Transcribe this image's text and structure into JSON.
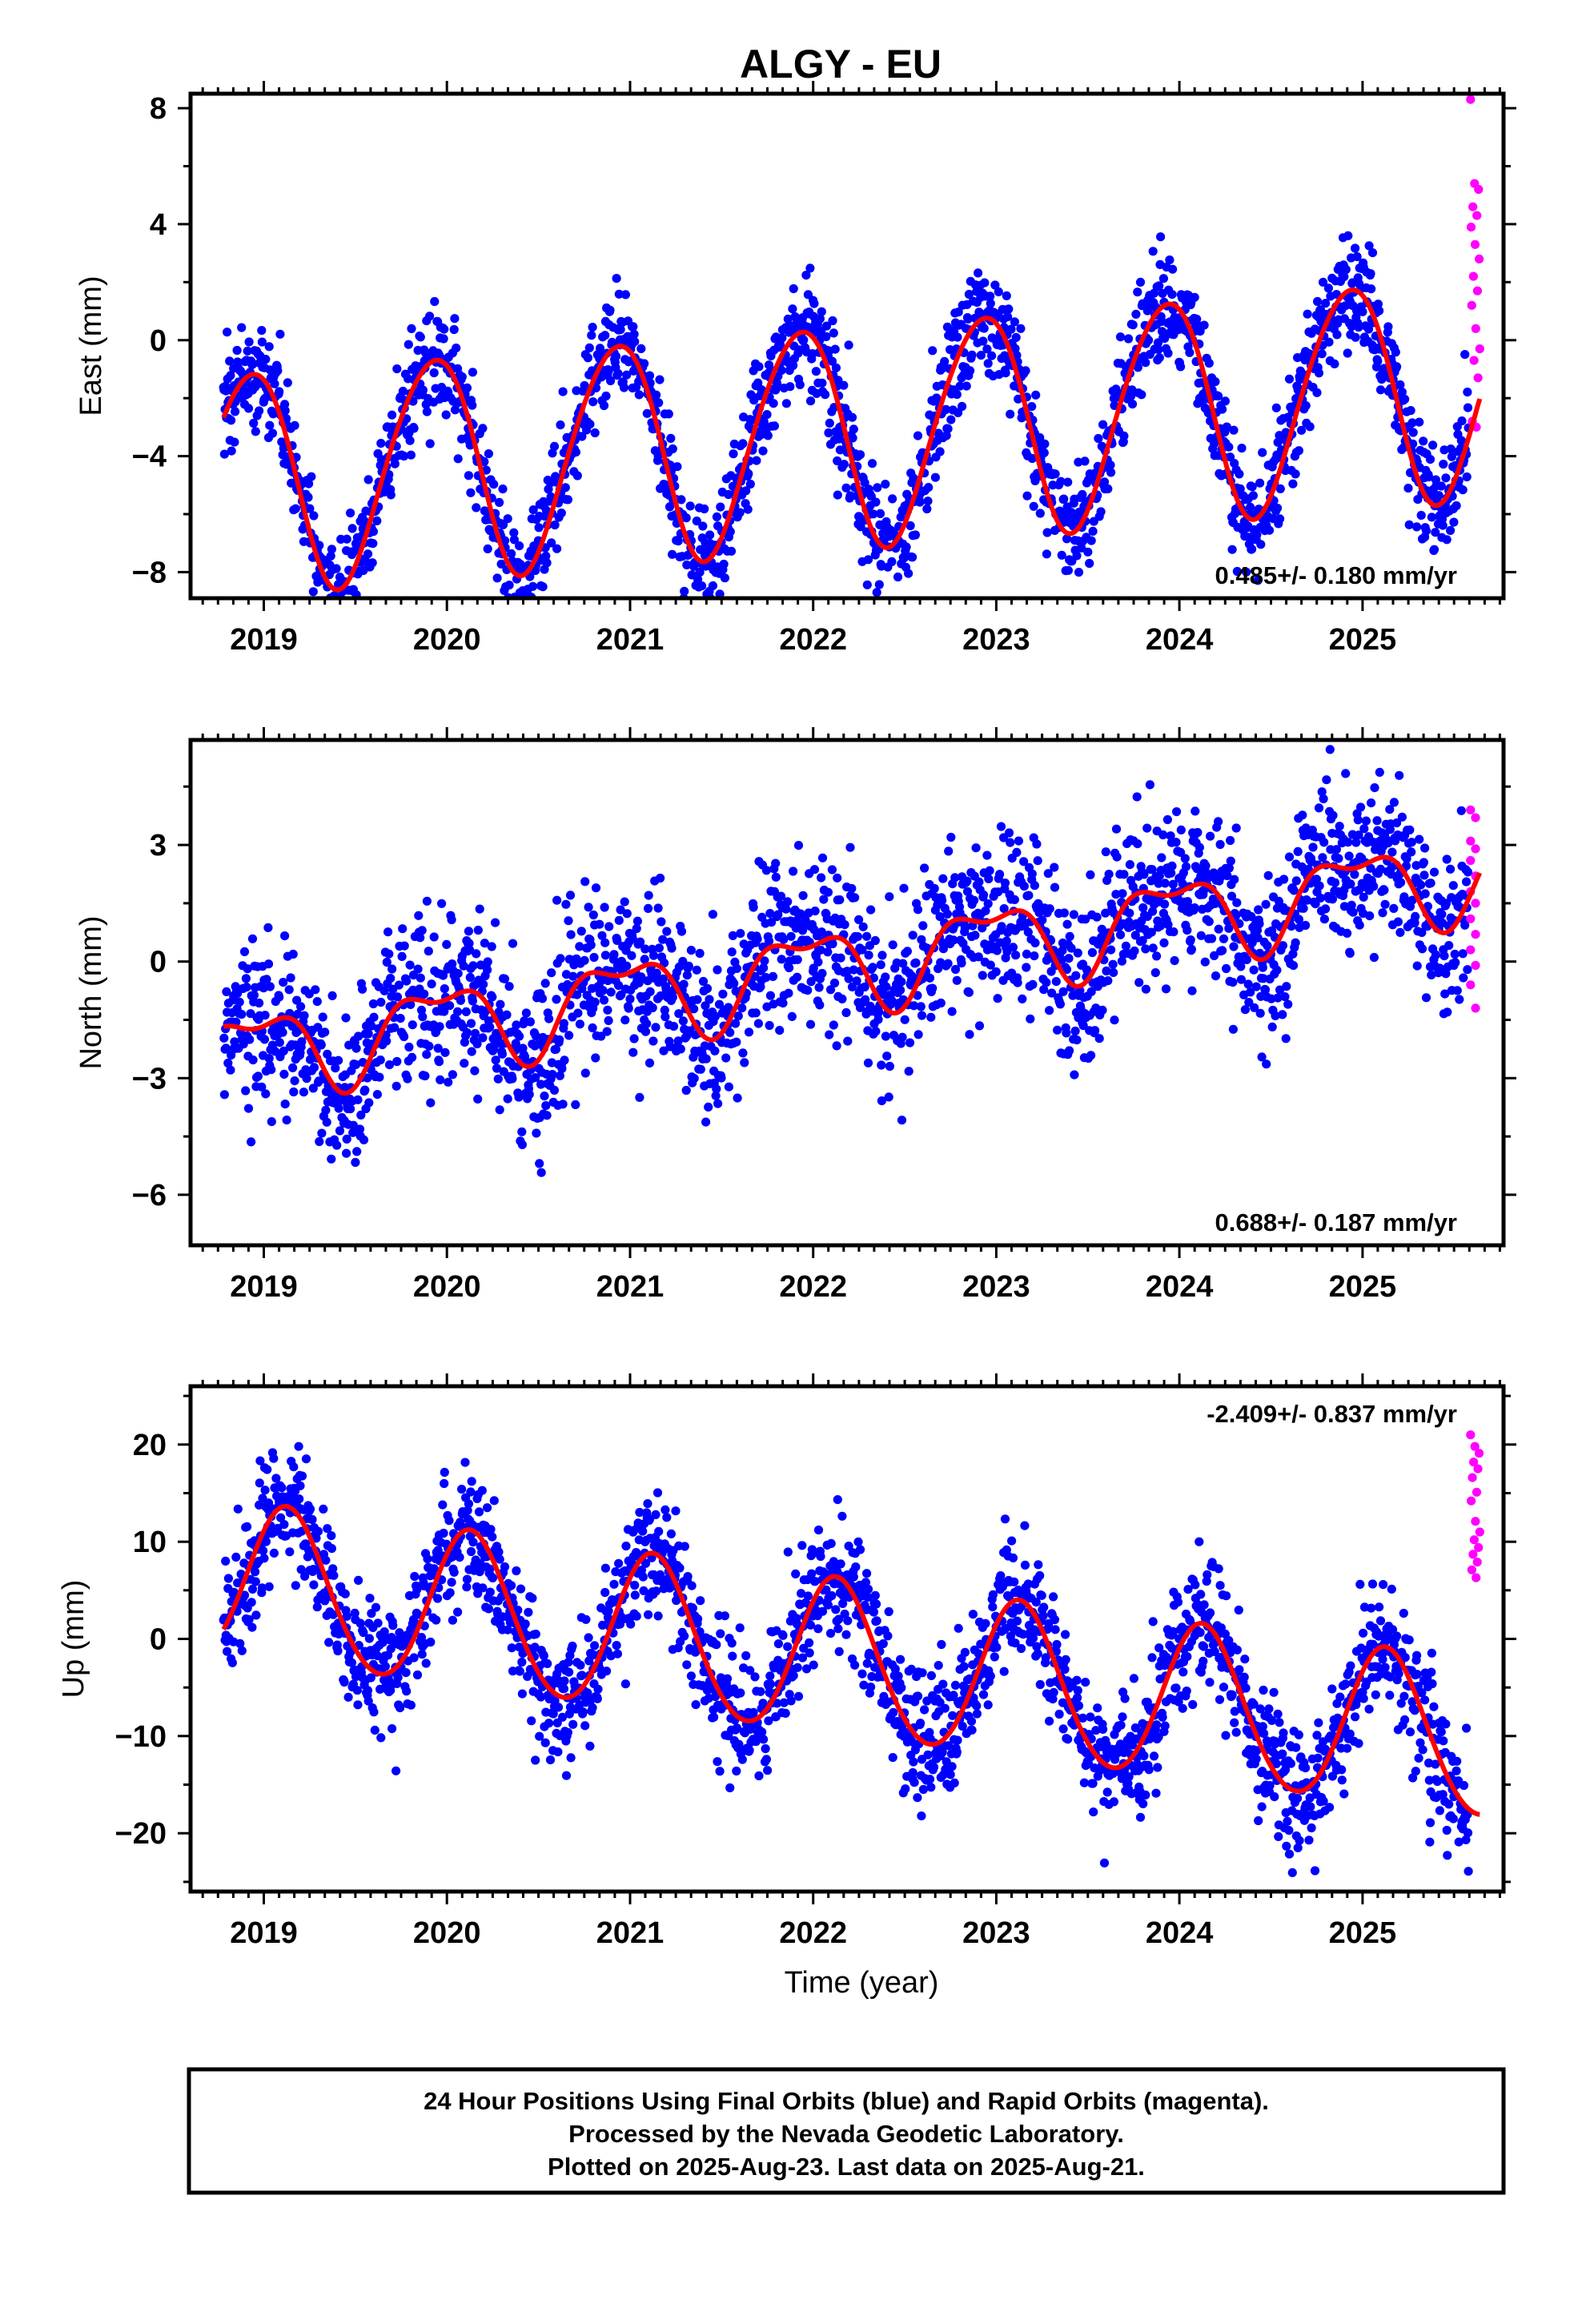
{
  "figure": {
    "title": "ALGY - EU",
    "caption": [
      "24 Hour Positions Using Final Orbits (blue) and Rapid Orbits (magenta).",
      "Processed by the Nevada Geodetic Laboratory.",
      "Plotted on 2025-Aug-23. Last data on 2025-Aug-21."
    ],
    "colors": {
      "final_orbits": "#0000ff",
      "rapid_orbits": "#ff00ff",
      "model_fit": "#ff0000",
      "frame": "#000000"
    }
  },
  "chart_data": [
    {
      "type": "scatter",
      "ylabel": "East (mm)",
      "xlabel": "",
      "rate_label": "0.485+/- 0.180 mm/yr",
      "rate_label_position": "bottom-right",
      "xlim": [
        2018.6,
        2025.77
      ],
      "ylim": [
        -8.9,
        8.5
      ],
      "x_ticks": [
        2019,
        2020,
        2021,
        2022,
        2023,
        2024,
        2025
      ],
      "y_ticks": [
        -8,
        -4,
        0,
        4,
        8
      ],
      "series": [
        {
          "role": "final",
          "style": "points",
          "x_start": 2018.78,
          "x_end": 2025.58,
          "trend": [
            -4.9,
            0.485
          ],
          "annual": [
            3.8,
            0.42
          ],
          "semiannual": [
            0.3,
            0.1
          ],
          "scatter": 0.95
        },
        {
          "role": "rapid",
          "style": "points",
          "x_range": [
            2025.59,
            2025.64
          ],
          "y": [
            8.3,
            5.4,
            5.2,
            4.6,
            4.3,
            3.9,
            3.3,
            2.8,
            2.2,
            1.7,
            1.2,
            0.4,
            -0.3,
            -0.7,
            -1.3,
            -2.8,
            -3.0
          ]
        },
        {
          "role": "fit",
          "style": "line",
          "x_start": 2018.78,
          "x_end": 2025.64,
          "trend": [
            -4.9,
            0.485
          ],
          "annual": [
            3.8,
            0.42
          ],
          "semiannual": [
            0.3,
            0.1
          ]
        }
      ]
    },
    {
      "type": "scatter",
      "ylabel": "North (mm)",
      "xlabel": "",
      "rate_label": "0.688+/- 0.187 mm/yr",
      "rate_label_position": "bottom-right",
      "xlim": [
        2018.6,
        2025.77
      ],
      "ylim": [
        -7.3,
        5.7
      ],
      "x_ticks": [
        2019,
        2020,
        2021,
        2022,
        2023,
        2024,
        2025
      ],
      "y_ticks": [
        -6,
        -3,
        0,
        3
      ],
      "series": [
        {
          "role": "final",
          "style": "points",
          "x_start": 2018.78,
          "x_end": 2025.58,
          "trend": [
            -2.4,
            0.688
          ],
          "annual": [
            1.0,
            0.45
          ],
          "semiannual": [
            0.45,
            0.2
          ],
          "scatter": 1.05
        },
        {
          "role": "rapid",
          "style": "points",
          "x_range": [
            2025.59,
            2025.64
          ],
          "y": [
            3.9,
            3.7,
            3.1,
            2.9,
            2.6,
            2.2,
            1.8,
            1.5,
            1.1,
            0.7,
            0.3,
            -0.1,
            -0.6,
            -1.2
          ]
        },
        {
          "role": "fit",
          "style": "line",
          "x_start": 2018.78,
          "x_end": 2025.64,
          "trend": [
            -2.4,
            0.688
          ],
          "annual": [
            1.0,
            0.45
          ],
          "semiannual": [
            0.45,
            0.2
          ]
        }
      ]
    },
    {
      "type": "scatter",
      "ylabel": "Up (mm)",
      "xlabel": "Time (year)",
      "rate_label": "-2.409+/- 0.837 mm/yr",
      "rate_label_position": "top-right",
      "xlim": [
        2018.6,
        2025.77
      ],
      "ylim": [
        -26.0,
        26.0
      ],
      "x_ticks": [
        2019,
        2020,
        2021,
        2022,
        2023,
        2024,
        2025
      ],
      "y_ticks": [
        -20,
        -10,
        0,
        10,
        20
      ],
      "series": [
        {
          "role": "final",
          "style": "points",
          "x_start": 2018.78,
          "x_end": 2025.58,
          "trend": [
            6.0,
            -2.409
          ],
          "annual": [
            8.0,
            0.63
          ],
          "semiannual": [
            0.5,
            0.1
          ],
          "scatter": 3.2
        },
        {
          "role": "rapid",
          "style": "points",
          "x_range": [
            2025.59,
            2025.64
          ],
          "y": [
            21.0,
            19.8,
            19.1,
            18.2,
            17.5,
            16.6,
            15.1,
            14.2,
            12.1,
            11.0,
            10.2,
            9.4,
            8.7,
            7.9,
            7.1,
            6.3
          ]
        },
        {
          "role": "fit",
          "style": "line",
          "x_start": 2018.78,
          "x_end": 2025.64,
          "trend": [
            6.0,
            -2.409
          ],
          "annual": [
            8.0,
            0.63
          ],
          "semiannual": [
            0.5,
            0.1
          ]
        }
      ]
    }
  ]
}
